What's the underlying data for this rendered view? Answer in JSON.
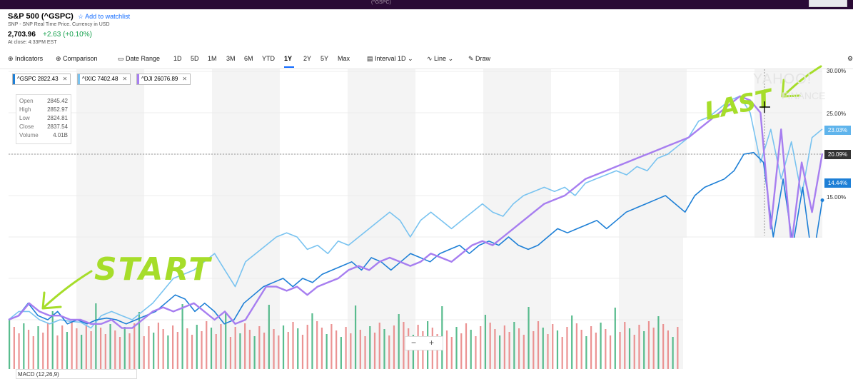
{
  "topbar": {
    "center_text": "(^GSPC)"
  },
  "quote": {
    "title": "S&P 500 (^GSPC)",
    "watchlist_label": "Add to watchlist",
    "source": "SNP - SNP Real Time Price. Currency in USD",
    "price": "2,703.96",
    "change": "+2.63 (+0.10%)",
    "close_time": "At close: 4:33PM EST"
  },
  "toolbar": {
    "indicators": "Indicators",
    "comparison": "Comparison",
    "date_range": "Date Range",
    "ranges": [
      "1D",
      "5D",
      "1M",
      "3M",
      "6M",
      "YTD",
      "1Y",
      "2Y",
      "5Y",
      "Max"
    ],
    "active_range": "1Y",
    "interval": "Interval",
    "interval_value": "1D",
    "line": "Line",
    "draw": "Draw"
  },
  "chips": [
    {
      "label": "^GSPC 2822.43",
      "color": "#1d7fd6"
    },
    {
      "label": "^IXIC 7402.48",
      "color": "#79c3f0"
    },
    {
      "label": "^DJI 26076.89",
      "color": "#a77ef0"
    }
  ],
  "ohlc": {
    "open_label": "Open",
    "open": "2845.42",
    "high_label": "High",
    "high": "2852.97",
    "low_label": "Low",
    "low": "2824.81",
    "close_label": "Close",
    "close": "2837.54",
    "volume_label": "Volume",
    "volume": "4.01B"
  },
  "watermark": {
    "line1": "YAHOO!",
    "line2": "FINANCE"
  },
  "zoom": {
    "minus": "−",
    "plus": "+"
  },
  "annotations": {
    "start": "START",
    "last": "LAST"
  },
  "macd": {
    "label": "MACD (12,26,9)"
  },
  "chart_data": {
    "type": "line",
    "y_axis_ticks": [
      "30.00%",
      "25.00%",
      "20.00%",
      "15.00%"
    ],
    "y_range_pct": [
      -15,
      30
    ],
    "current_labels": [
      {
        "series": "^IXIC",
        "value": "23.03%",
        "color": "#5fb4ec"
      },
      {
        "series": "^DJI",
        "value": "20.09%",
        "color": "#333333"
      },
      {
        "series": "^GSPC",
        "value": "14.44%",
        "color": "#1d7fd6"
      }
    ],
    "series": [
      {
        "name": "^GSPC",
        "color": "#1d7fd6",
        "values": [
          0,
          0.5,
          2,
          0.5,
          0,
          1,
          -0.5,
          0,
          -0.5,
          0,
          0.2,
          0,
          -0.5,
          0,
          0.5,
          1,
          2,
          3,
          2.5,
          1,
          2,
          1,
          -0.5,
          0,
          2,
          3,
          4,
          4.5,
          5,
          4,
          5,
          4.5,
          5.5,
          6,
          6.5,
          7,
          6,
          7.5,
          7,
          6,
          7,
          8,
          7.5,
          7,
          8,
          8.5,
          9,
          8,
          9,
          9.5,
          9,
          10,
          9,
          8.5,
          9,
          10,
          11,
          10.5,
          11,
          11.5,
          12,
          11,
          12,
          13,
          13.5,
          14,
          14.5,
          15,
          14,
          13,
          15,
          16,
          16.5,
          17,
          18,
          20,
          20.2,
          19,
          10,
          17,
          9,
          16,
          7,
          14.44
        ]
      },
      {
        "name": "^IXIC",
        "color": "#79c3f0",
        "values": [
          0,
          1,
          1,
          0,
          -0.5,
          0,
          -0.2,
          -0.3,
          -1,
          0.5,
          1,
          0.5,
          0,
          1,
          2,
          3.5,
          5,
          5.5,
          6,
          7,
          8,
          6,
          4,
          7,
          8,
          9,
          10,
          10.5,
          10,
          8.5,
          9,
          8,
          9.5,
          9,
          10,
          11,
          12,
          13,
          12,
          10,
          12,
          13,
          12,
          11,
          12,
          13,
          14,
          13,
          12.5,
          14,
          15,
          15.5,
          16,
          15.5,
          16,
          15,
          16.5,
          17,
          17.5,
          18,
          17.5,
          18.5,
          18,
          19.5,
          20,
          21,
          22,
          24,
          24.5,
          25.5,
          26.5,
          27,
          25,
          19,
          23,
          17,
          21.5,
          15,
          22,
          23.03
        ]
      },
      {
        "name": "^DJI",
        "color": "#a77ef0",
        "values": [
          0,
          0.5,
          2,
          1,
          0.5,
          0.5,
          0,
          0,
          -0.5,
          -0.5,
          0,
          -1,
          -1,
          0,
          1,
          1.5,
          1,
          1.5,
          2,
          1,
          0,
          1,
          -0.5,
          0,
          2,
          4,
          4,
          3.5,
          4,
          3,
          4,
          4.5,
          5,
          6,
          6.5,
          6,
          7,
          7.5,
          7,
          6.5,
          7,
          8,
          7.5,
          7,
          8,
          9,
          9.5,
          9,
          10,
          11,
          12,
          13,
          14,
          14.5,
          15,
          16,
          17,
          17.5,
          18,
          18.5,
          19,
          19.5,
          20,
          20.5,
          21,
          21.5,
          22,
          23,
          24,
          25,
          26,
          27,
          26.5,
          25,
          11,
          23,
          9,
          19,
          13,
          20.09
        ]
      }
    ],
    "volume_bars": 140
  }
}
